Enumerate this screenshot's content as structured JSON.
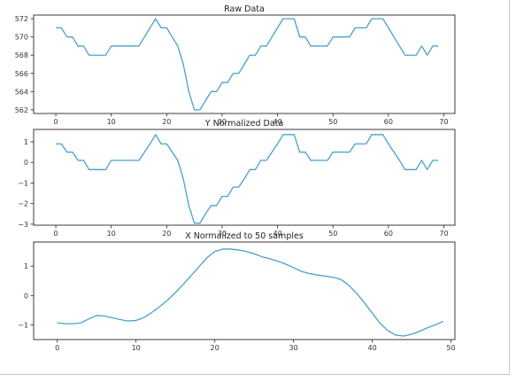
{
  "chart_data": [
    {
      "type": "line",
      "title": "Raw Data",
      "xlabel": "",
      "ylabel": "",
      "xlim": [
        -4,
        72
      ],
      "ylim": [
        561.6,
        572.4
      ],
      "xticks": [
        0,
        10,
        20,
        30,
        40,
        50,
        60,
        70
      ],
      "yticks": [
        562,
        564,
        566,
        568,
        570,
        572
      ],
      "grid": false,
      "color": "#4aa0cc",
      "x": [
        0,
        1,
        2,
        3,
        4,
        5,
        6,
        7,
        8,
        9,
        10,
        11,
        12,
        13,
        14,
        15,
        16,
        17,
        18,
        19,
        20,
        21,
        22,
        23,
        24,
        25,
        26,
        27,
        28,
        29,
        30,
        31,
        32,
        33,
        34,
        35,
        36,
        37,
        38,
        39,
        40,
        41,
        42,
        43,
        44,
        45,
        46,
        47,
        48,
        49,
        50,
        51,
        52,
        53,
        54,
        55,
        56,
        57,
        58,
        59,
        60,
        61,
        62,
        63,
        64,
        65,
        66,
        67,
        68,
        69
      ],
      "series": [
        {
          "values": [
            571,
            571,
            570,
            570,
            569,
            569,
            568,
            568,
            568,
            568,
            569,
            569,
            569,
            569,
            569,
            569,
            570,
            571,
            572,
            571,
            571,
            570,
            569,
            567,
            564,
            562,
            562,
            563,
            564,
            564,
            565,
            565,
            566,
            566,
            567,
            568,
            568,
            569,
            569,
            570,
            571,
            572,
            572,
            572,
            570,
            570,
            569,
            569,
            569,
            569,
            570,
            570,
            570,
            570,
            571,
            571,
            571,
            572,
            572,
            572,
            571,
            570,
            569,
            568,
            568,
            568,
            569,
            568,
            569,
            569
          ]
        }
      ]
    },
    {
      "type": "line",
      "title": "Y Normalized Data",
      "xlabel": "",
      "ylabel": "",
      "xlim": [
        -4,
        72
      ],
      "ylim": [
        -3.05,
        1.6
      ],
      "xticks": [
        0,
        10,
        20,
        30,
        40,
        50,
        60,
        70
      ],
      "yticks": [
        -3,
        -2,
        -1,
        0,
        1
      ],
      "grid": false,
      "color": "#4aa0cc",
      "x": [
        0,
        1,
        2,
        3,
        4,
        5,
        6,
        7,
        8,
        9,
        10,
        11,
        12,
        13,
        14,
        15,
        16,
        17,
        18,
        19,
        20,
        21,
        22,
        23,
        24,
        25,
        26,
        27,
        28,
        29,
        30,
        31,
        32,
        33,
        34,
        35,
        36,
        37,
        38,
        39,
        40,
        41,
        42,
        43,
        44,
        45,
        46,
        47,
        48,
        49,
        50,
        51,
        52,
        53,
        54,
        55,
        56,
        57,
        58,
        59,
        60,
        61,
        62,
        63,
        64,
        65,
        66,
        67,
        68,
        69
      ],
      "series": [
        {
          "values": [
            0.9,
            0.9,
            0.5,
            0.5,
            0.1,
            0.1,
            -0.35,
            -0.35,
            -0.35,
            -0.35,
            0.1,
            0.1,
            0.1,
            0.1,
            0.1,
            0.1,
            0.5,
            0.9,
            1.35,
            0.9,
            0.9,
            0.5,
            0.1,
            -0.8,
            -2.1,
            -2.95,
            -2.95,
            -2.5,
            -2.1,
            -2.1,
            -1.65,
            -1.65,
            -1.2,
            -1.2,
            -0.8,
            -0.35,
            -0.35,
            0.1,
            0.1,
            0.5,
            0.9,
            1.35,
            1.35,
            1.35,
            0.5,
            0.5,
            0.1,
            0.1,
            0.1,
            0.1,
            0.5,
            0.5,
            0.5,
            0.5,
            0.9,
            0.9,
            0.9,
            1.35,
            1.35,
            1.35,
            0.9,
            0.5,
            0.1,
            -0.35,
            -0.35,
            -0.35,
            0.1,
            -0.35,
            0.1,
            0.1
          ]
        }
      ]
    },
    {
      "type": "line",
      "title": "X Normalized to 50 samples",
      "xlabel": "",
      "ylabel": "",
      "xlim": [
        -3,
        50.5
      ],
      "ylim": [
        -1.5,
        1.82
      ],
      "xticks": [
        0,
        10,
        20,
        30,
        40,
        50
      ],
      "yticks": [
        -1,
        0,
        1
      ],
      "grid": false,
      "color": "#4aa0cc",
      "x": [
        0,
        1,
        2,
        3,
        4,
        5,
        6,
        7,
        8,
        9,
        10,
        11,
        12,
        13,
        14,
        15,
        16,
        17,
        18,
        19,
        20,
        21,
        22,
        23,
        24,
        25,
        26,
        27,
        28,
        29,
        30,
        31,
        32,
        33,
        34,
        35,
        36,
        37,
        38,
        39,
        40,
        41,
        42,
        43,
        44,
        45,
        46,
        47,
        48,
        49
      ],
      "series": [
        {
          "values": [
            -0.93,
            -0.96,
            -0.96,
            -0.93,
            -0.8,
            -0.68,
            -0.7,
            -0.76,
            -0.82,
            -0.87,
            -0.85,
            -0.75,
            -0.58,
            -0.38,
            -0.16,
            0.1,
            0.38,
            0.68,
            0.98,
            1.28,
            1.5,
            1.58,
            1.58,
            1.55,
            1.5,
            1.42,
            1.32,
            1.25,
            1.17,
            1.07,
            0.95,
            0.82,
            0.75,
            0.7,
            0.66,
            0.62,
            0.55,
            0.35,
            0.08,
            -0.25,
            -0.6,
            -0.95,
            -1.2,
            -1.35,
            -1.38,
            -1.32,
            -1.22,
            -1.1,
            -1.0,
            -0.88
          ]
        }
      ]
    }
  ]
}
